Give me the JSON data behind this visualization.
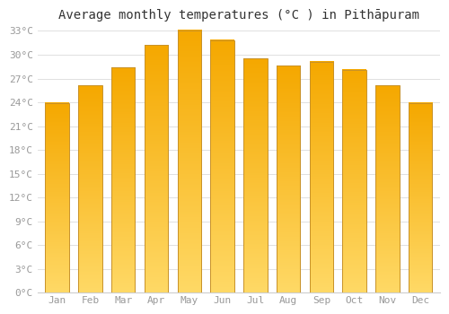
{
  "title": "Average monthly temperatures (°C ) in Pithāpuram",
  "months": [
    "Jan",
    "Feb",
    "Mar",
    "Apr",
    "May",
    "Jun",
    "Jul",
    "Aug",
    "Sep",
    "Oct",
    "Nov",
    "Dec"
  ],
  "values": [
    23.9,
    26.1,
    28.4,
    31.2,
    33.1,
    31.8,
    29.5,
    28.6,
    29.1,
    28.1,
    26.1,
    23.9
  ],
  "bar_color_top": "#F5A800",
  "bar_color_bottom": "#FFD966",
  "bar_edge_color": "#C8922A",
  "background_color": "#FFFFFF",
  "grid_color": "#E0E0E0",
  "ytick_step": 3,
  "ymin": 0,
  "ymax": 33,
  "tick_label_color": "#999999",
  "title_color": "#333333",
  "title_fontsize": 10,
  "tick_fontsize": 8
}
